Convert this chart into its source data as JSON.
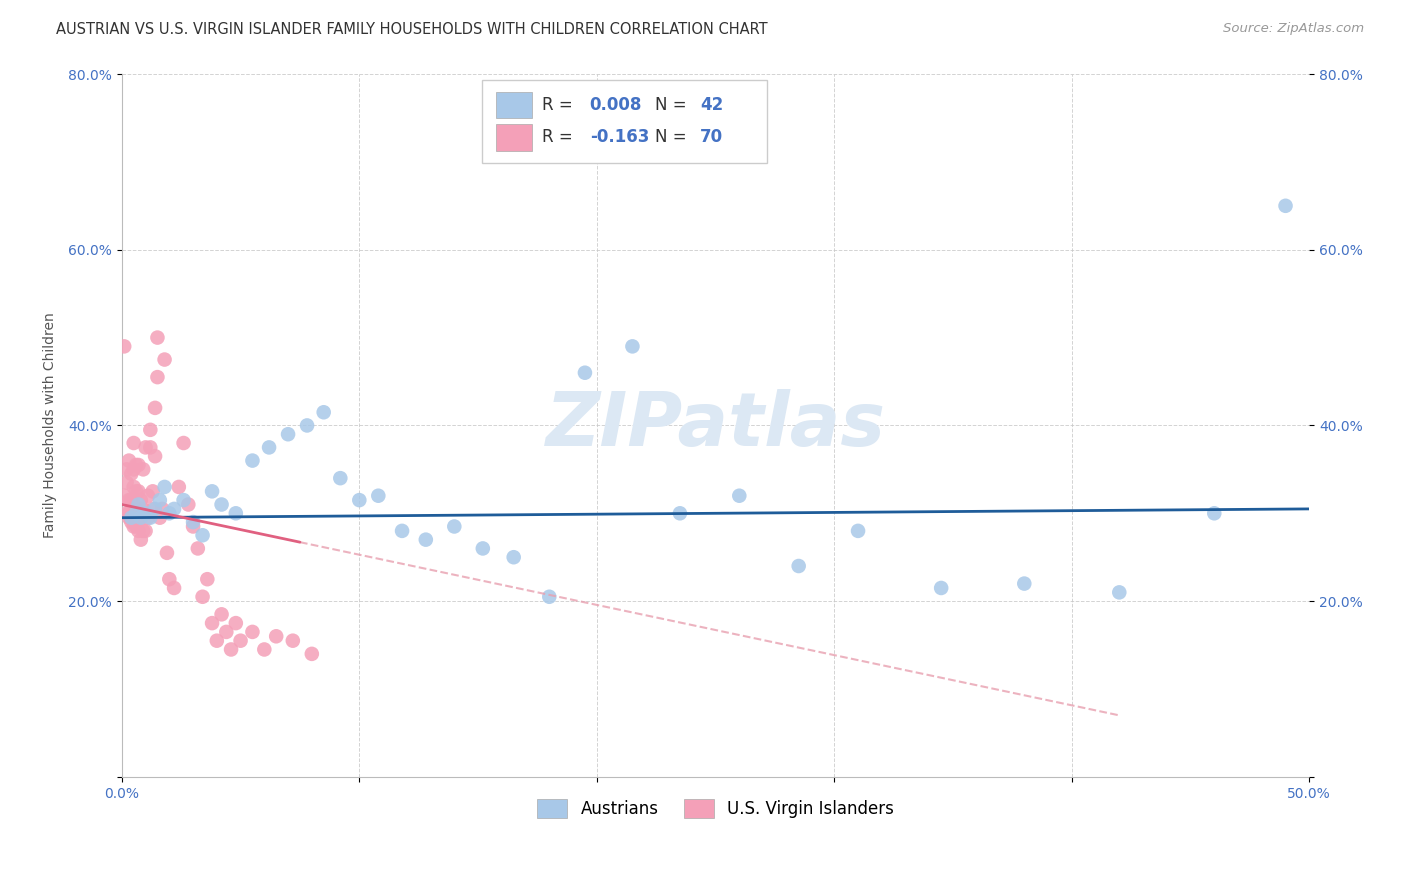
{
  "title": "AUSTRIAN VS U.S. VIRGIN ISLANDER FAMILY HOUSEHOLDS WITH CHILDREN CORRELATION CHART",
  "source": "Source: ZipAtlas.com",
  "ylabel": "Family Households with Children",
  "xlim": [
    0.0,
    0.5
  ],
  "ylim": [
    0.0,
    0.8
  ],
  "xticks": [
    0.0,
    0.1,
    0.2,
    0.3,
    0.4,
    0.5
  ],
  "yticks": [
    0.0,
    0.2,
    0.4,
    0.6,
    0.8
  ],
  "ytick_labels_left": [
    "",
    "20.0%",
    "40.0%",
    "60.0%",
    "80.0%"
  ],
  "ytick_labels_right": [
    "",
    "20.0%",
    "40.0%",
    "60.0%",
    "80.0%"
  ],
  "xtick_labels": [
    "0.0%",
    "",
    "",
    "",
    "",
    "50.0%"
  ],
  "blue_dot_color": "#a8c8e8",
  "pink_dot_color": "#f4a0b8",
  "blue_line_color": "#1f5c99",
  "pink_line_color": "#e06080",
  "pink_line_dash_color": "#e8a0b0",
  "tick_color": "#4472c4",
  "grid_color": "#c8c8c8",
  "watermark": "ZIPatlas",
  "watermark_color": "#dce8f4",
  "legend_R_N_color": "#4472c4",
  "title_fontsize": 10.5,
  "axis_label_fontsize": 10,
  "tick_fontsize": 10,
  "dot_size": 110,
  "austrians_x": [
    0.004,
    0.006,
    0.007,
    0.008,
    0.01,
    0.012,
    0.014,
    0.016,
    0.018,
    0.02,
    0.022,
    0.026,
    0.03,
    0.034,
    0.038,
    0.042,
    0.048,
    0.055,
    0.062,
    0.07,
    0.078,
    0.085,
    0.092,
    0.1,
    0.108,
    0.118,
    0.128,
    0.14,
    0.152,
    0.165,
    0.18,
    0.195,
    0.215,
    0.235,
    0.26,
    0.285,
    0.31,
    0.345,
    0.38,
    0.42,
    0.46,
    0.49
  ],
  "austrians_y": [
    0.295,
    0.3,
    0.31,
    0.295,
    0.3,
    0.295,
    0.305,
    0.315,
    0.33,
    0.3,
    0.305,
    0.315,
    0.29,
    0.275,
    0.325,
    0.31,
    0.3,
    0.36,
    0.375,
    0.39,
    0.4,
    0.415,
    0.34,
    0.315,
    0.32,
    0.28,
    0.27,
    0.285,
    0.26,
    0.25,
    0.205,
    0.46,
    0.49,
    0.3,
    0.32,
    0.24,
    0.28,
    0.215,
    0.22,
    0.21,
    0.3,
    0.65
  ],
  "virgin_x": [
    0.001,
    0.001,
    0.002,
    0.002,
    0.002,
    0.003,
    0.003,
    0.003,
    0.003,
    0.004,
    0.004,
    0.004,
    0.004,
    0.005,
    0.005,
    0.005,
    0.005,
    0.005,
    0.006,
    0.006,
    0.006,
    0.006,
    0.007,
    0.007,
    0.007,
    0.007,
    0.008,
    0.008,
    0.008,
    0.009,
    0.009,
    0.009,
    0.01,
    0.01,
    0.01,
    0.011,
    0.011,
    0.012,
    0.012,
    0.013,
    0.013,
    0.014,
    0.014,
    0.015,
    0.015,
    0.016,
    0.017,
    0.018,
    0.019,
    0.02,
    0.022,
    0.024,
    0.026,
    0.028,
    0.03,
    0.032,
    0.034,
    0.036,
    0.038,
    0.04,
    0.042,
    0.044,
    0.046,
    0.048,
    0.05,
    0.055,
    0.06,
    0.065,
    0.072,
    0.08
  ],
  "virgin_y": [
    0.49,
    0.32,
    0.35,
    0.3,
    0.335,
    0.295,
    0.315,
    0.36,
    0.3,
    0.295,
    0.315,
    0.345,
    0.29,
    0.285,
    0.31,
    0.33,
    0.35,
    0.38,
    0.285,
    0.305,
    0.325,
    0.355,
    0.28,
    0.3,
    0.325,
    0.355,
    0.27,
    0.295,
    0.315,
    0.28,
    0.305,
    0.35,
    0.28,
    0.3,
    0.375,
    0.295,
    0.32,
    0.375,
    0.395,
    0.305,
    0.325,
    0.365,
    0.42,
    0.455,
    0.5,
    0.295,
    0.305,
    0.475,
    0.255,
    0.225,
    0.215,
    0.33,
    0.38,
    0.31,
    0.285,
    0.26,
    0.205,
    0.225,
    0.175,
    0.155,
    0.185,
    0.165,
    0.145,
    0.175,
    0.155,
    0.165,
    0.145,
    0.16,
    0.155,
    0.14
  ],
  "blue_trend_x": [
    0.0,
    0.5
  ],
  "blue_trend_y": [
    0.295,
    0.305
  ],
  "pink_trend_x": [
    0.0,
    0.42
  ],
  "pink_trend_y": [
    0.31,
    0.07
  ]
}
